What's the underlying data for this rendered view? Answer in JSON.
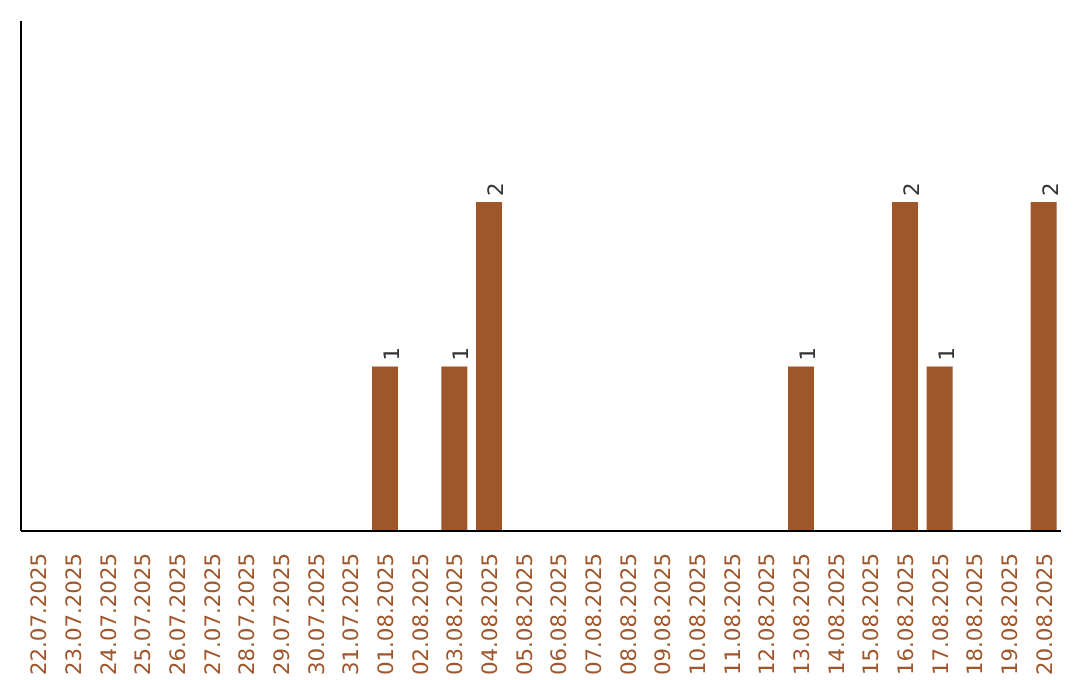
{
  "chart_data": {
    "type": "bar",
    "categories": [
      "22.07.2025",
      "23.07.2025",
      "24.07.2025",
      "25.07.2025",
      "26.07.2025",
      "27.07.2025",
      "28.07.2025",
      "29.07.2025",
      "30.07.2025",
      "31.07.2025",
      "01.08.2025",
      "02.08.2025",
      "03.08.2025",
      "04.08.2025",
      "05.08.2025",
      "06.08.2025",
      "07.08.2025",
      "08.08.2025",
      "09.08.2025",
      "10.08.2025",
      "11.08.2025",
      "12.08.2025",
      "13.08.2025",
      "14.08.2025",
      "15.08.2025",
      "16.08.2025",
      "17.08.2025",
      "18.08.2025",
      "19.08.2025",
      "20.08.2025"
    ],
    "values": [
      0,
      0,
      0,
      0,
      0,
      0,
      0,
      0,
      0,
      0,
      1,
      0,
      1,
      2,
      0,
      0,
      0,
      0,
      0,
      0,
      0,
      0,
      1,
      0,
      0,
      2,
      1,
      0,
      0,
      2
    ],
    "value_labels": [
      null,
      null,
      null,
      null,
      null,
      null,
      null,
      null,
      null,
      null,
      "1",
      null,
      "1",
      "2",
      null,
      null,
      null,
      null,
      null,
      null,
      null,
      null,
      "1",
      null,
      null,
      "2",
      "1",
      null,
      null,
      "2"
    ],
    "color": "#a0562b",
    "ylim": [
      0,
      3.1
    ],
    "tick_labels": "x",
    "grid": false
  }
}
